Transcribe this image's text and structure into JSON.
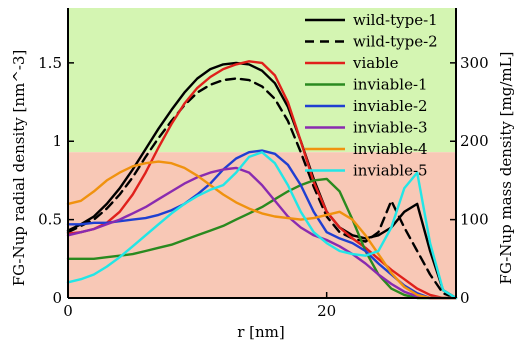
{
  "chart_data": {
    "type": "line",
    "xlabel": "r [nm]",
    "ylabel": "FG-Nup radial density [nm^-3]",
    "y2label": "FG-Nup mass density [mg/mL]",
    "xlim": [
      0,
      30
    ],
    "ylim": [
      0,
      1.85
    ],
    "y2lim": [
      0,
      370
    ],
    "xticks": [
      0,
      20
    ],
    "yticks": [
      0,
      0.5,
      1,
      1.5
    ],
    "y2ticks": [
      0,
      100,
      200,
      300
    ],
    "bands": [
      {
        "ymin": 0.93,
        "ymax": 1.85,
        "color": "#d4f5b2"
      },
      {
        "ymin": 0,
        "ymax": 0.93,
        "color": "#f8c8b6"
      }
    ],
    "legend_position": "top-right",
    "series": [
      {
        "name": "wild-type-1",
        "color": "#000000",
        "dash": "solid",
        "x": [
          0,
          1,
          2,
          3,
          4,
          5,
          6,
          7,
          8,
          9,
          10,
          11,
          12,
          13,
          14,
          15,
          16,
          17,
          18,
          19,
          20,
          21,
          22,
          23,
          24,
          25,
          26,
          27,
          28,
          29,
          30
        ],
        "y": [
          0.43,
          0.47,
          0.52,
          0.6,
          0.7,
          0.82,
          0.95,
          1.08,
          1.2,
          1.31,
          1.4,
          1.46,
          1.49,
          1.5,
          1.49,
          1.45,
          1.37,
          1.22,
          1.0,
          0.76,
          0.55,
          0.45,
          0.4,
          0.38,
          0.4,
          0.45,
          0.55,
          0.6,
          0.3,
          0.05,
          0.0
        ]
      },
      {
        "name": "wild-type-2",
        "color": "#000000",
        "dash": "dashed",
        "x": [
          0,
          1,
          2,
          3,
          4,
          5,
          6,
          7,
          8,
          9,
          10,
          11,
          12,
          13,
          14,
          15,
          16,
          17,
          18,
          19,
          20,
          21,
          22,
          23,
          24,
          25,
          26,
          27,
          28,
          29,
          30
        ],
        "y": [
          0.42,
          0.46,
          0.5,
          0.57,
          0.66,
          0.77,
          0.9,
          1.02,
          1.13,
          1.23,
          1.31,
          1.36,
          1.39,
          1.4,
          1.39,
          1.35,
          1.27,
          1.13,
          0.93,
          0.71,
          0.52,
          0.42,
          0.38,
          0.36,
          0.42,
          0.62,
          0.45,
          0.3,
          0.15,
          0.03,
          0.0
        ]
      },
      {
        "name": "viable",
        "color": "#e0201b",
        "dash": "solid",
        "x": [
          0,
          1,
          2,
          3,
          4,
          5,
          6,
          7,
          8,
          9,
          10,
          11,
          12,
          13,
          14,
          15,
          16,
          17,
          18,
          19,
          20,
          21,
          22,
          23,
          24,
          25,
          26,
          27,
          28,
          29,
          30
        ],
        "y": [
          0.41,
          0.42,
          0.44,
          0.48,
          0.55,
          0.66,
          0.8,
          0.96,
          1.11,
          1.24,
          1.34,
          1.41,
          1.46,
          1.49,
          1.51,
          1.5,
          1.42,
          1.25,
          1.0,
          0.74,
          0.55,
          0.45,
          0.38,
          0.32,
          0.25,
          0.18,
          0.12,
          0.06,
          0.02,
          0.0,
          0.0
        ]
      },
      {
        "name": "inviable-1",
        "color": "#2a8a1f",
        "dash": "solid",
        "x": [
          0,
          1,
          2,
          3,
          4,
          5,
          6,
          7,
          8,
          9,
          10,
          11,
          12,
          13,
          14,
          15,
          16,
          17,
          18,
          19,
          20,
          21,
          22,
          23,
          24,
          25,
          26,
          27,
          28,
          29,
          30
        ],
        "y": [
          0.25,
          0.25,
          0.25,
          0.26,
          0.27,
          0.28,
          0.3,
          0.32,
          0.34,
          0.37,
          0.4,
          0.43,
          0.46,
          0.5,
          0.54,
          0.58,
          0.63,
          0.68,
          0.72,
          0.75,
          0.76,
          0.68,
          0.5,
          0.3,
          0.15,
          0.06,
          0.02,
          0.0,
          0.0,
          0.0,
          0.0
        ]
      },
      {
        "name": "inviable-2",
        "color": "#1f3fd1",
        "dash": "solid",
        "x": [
          0,
          1,
          2,
          3,
          4,
          5,
          6,
          7,
          8,
          9,
          10,
          11,
          12,
          13,
          14,
          15,
          16,
          17,
          18,
          19,
          20,
          21,
          22,
          23,
          24,
          25,
          26,
          27,
          28,
          29,
          30
        ],
        "y": [
          0.47,
          0.47,
          0.48,
          0.48,
          0.49,
          0.5,
          0.51,
          0.53,
          0.56,
          0.6,
          0.66,
          0.73,
          0.82,
          0.89,
          0.93,
          0.94,
          0.92,
          0.85,
          0.72,
          0.55,
          0.42,
          0.38,
          0.35,
          0.3,
          0.22,
          0.15,
          0.08,
          0.03,
          0.0,
          0.0,
          0.0
        ]
      },
      {
        "name": "inviable-3",
        "color": "#8a2bb0",
        "dash": "solid",
        "x": [
          0,
          1,
          2,
          3,
          4,
          5,
          6,
          7,
          8,
          9,
          10,
          11,
          12,
          13,
          14,
          15,
          16,
          17,
          18,
          19,
          20,
          21,
          22,
          23,
          24,
          25,
          26,
          27,
          28,
          29,
          30
        ],
        "y": [
          0.4,
          0.42,
          0.44,
          0.47,
          0.5,
          0.54,
          0.58,
          0.63,
          0.68,
          0.73,
          0.77,
          0.8,
          0.82,
          0.83,
          0.8,
          0.72,
          0.62,
          0.52,
          0.45,
          0.4,
          0.37,
          0.33,
          0.28,
          0.22,
          0.15,
          0.09,
          0.04,
          0.01,
          0.0,
          0.0,
          0.0
        ]
      },
      {
        "name": "inviable-4",
        "color": "#f0920f",
        "dash": "solid",
        "x": [
          0,
          1,
          2,
          3,
          4,
          5,
          6,
          7,
          8,
          9,
          10,
          11,
          12,
          13,
          14,
          15,
          16,
          17,
          18,
          19,
          20,
          21,
          22,
          23,
          24,
          25,
          26,
          27,
          28,
          29,
          30
        ],
        "y": [
          0.6,
          0.62,
          0.68,
          0.75,
          0.8,
          0.84,
          0.86,
          0.87,
          0.86,
          0.83,
          0.78,
          0.72,
          0.66,
          0.61,
          0.57,
          0.54,
          0.52,
          0.51,
          0.5,
          0.51,
          0.53,
          0.55,
          0.5,
          0.4,
          0.28,
          0.16,
          0.07,
          0.02,
          0.0,
          0.0,
          0.0
        ]
      },
      {
        "name": "inviable-5",
        "color": "#22e6e6",
        "dash": "solid",
        "x": [
          0,
          1,
          2,
          3,
          4,
          5,
          6,
          7,
          8,
          9,
          10,
          11,
          12,
          13,
          14,
          15,
          16,
          17,
          18,
          19,
          20,
          21,
          22,
          23,
          24,
          25,
          26,
          27,
          28,
          29,
          30
        ],
        "y": [
          0.1,
          0.12,
          0.15,
          0.2,
          0.26,
          0.33,
          0.4,
          0.47,
          0.54,
          0.6,
          0.65,
          0.69,
          0.72,
          0.8,
          0.9,
          0.93,
          0.86,
          0.72,
          0.55,
          0.42,
          0.35,
          0.3,
          0.28,
          0.27,
          0.3,
          0.45,
          0.7,
          0.8,
          0.35,
          0.05,
          0.0
        ]
      }
    ]
  }
}
